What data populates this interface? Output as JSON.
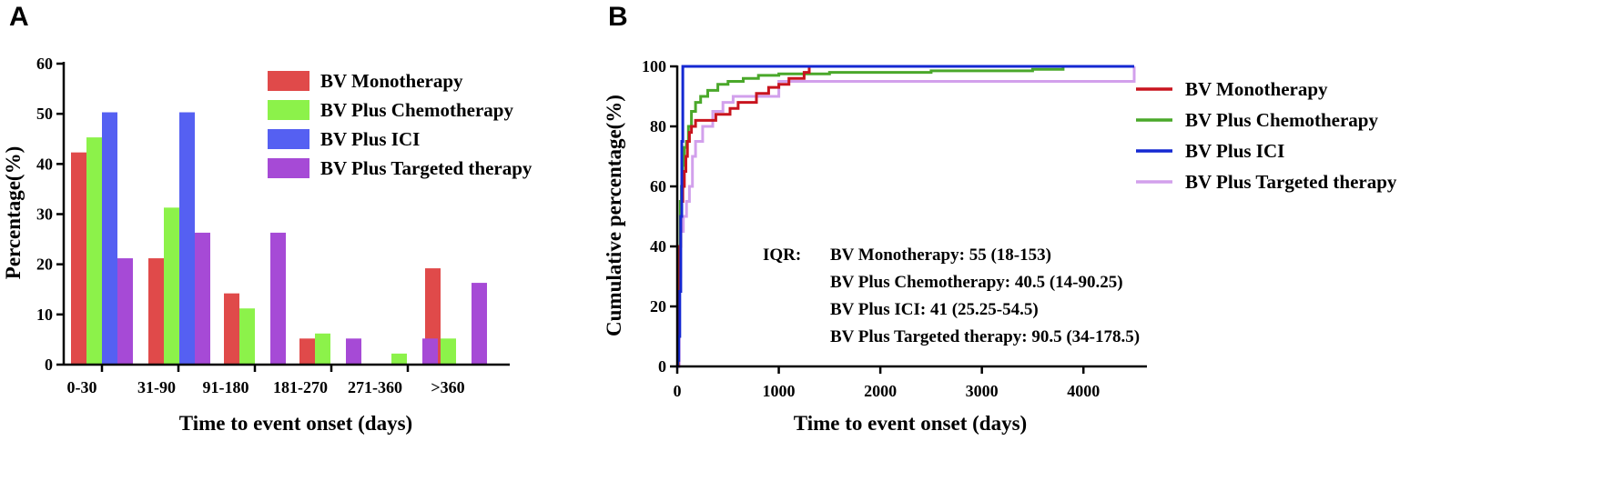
{
  "panels": {
    "a": {
      "letter": "A"
    },
    "b": {
      "letter": "B"
    }
  },
  "colors": {
    "mono": "#e04a4a",
    "chemo": "#8cf24a",
    "ici": "#5560f2",
    "targeted": "#a64ad6",
    "line_mono": "#c8141e",
    "line_chemo": "#4aa82a",
    "line_ici": "#1428d2",
    "line_targeted": "#d2a0ec"
  },
  "chart_data": [
    {
      "type": "bar",
      "title": "",
      "xlabel": "Time to event onset (days)",
      "ylabel": "Percentage(%)",
      "ylim": [
        0,
        60
      ],
      "yticks": [
        "0",
        "10",
        "20",
        "30",
        "40",
        "50",
        "60"
      ],
      "categories": [
        "0-30",
        "31-90",
        "91-180",
        "181-270",
        "271-360",
        ">360"
      ],
      "legend_position": "top-right",
      "series": [
        {
          "key": "mono",
          "name": "BV Monotherapy",
          "values": [
            42.3,
            21.2,
            14.2,
            5.2,
            0,
            19.2
          ]
        },
        {
          "key": "chemo",
          "name": "BV Plus Chemotherapy",
          "values": [
            45.3,
            31.3,
            11.2,
            6.2,
            2.2,
            5.2
          ]
        },
        {
          "key": "ici",
          "name": "BV Plus ICI",
          "values": [
            50.3,
            50.3,
            0,
            0,
            0,
            0
          ]
        },
        {
          "key": "targeted",
          "name": "BV Plus Targeted therapy",
          "values": [
            21.2,
            26.3,
            26.3,
            5.2,
            5.2,
            16.3
          ]
        }
      ]
    },
    {
      "type": "line",
      "title": "",
      "xlabel": "Time to event onset (days)",
      "ylabel": "Cumulative percentage(%)",
      "xlim": [
        0,
        4500
      ],
      "ylim": [
        0,
        100
      ],
      "xticks": [
        "0",
        "1000",
        "2000",
        "3000",
        "4000"
      ],
      "yticks": [
        "0",
        "20",
        "40",
        "60",
        "80",
        "100"
      ],
      "legend_position": "right",
      "series": [
        {
          "key": "line_mono",
          "name": "BV Monotherapy",
          "x": [
            0,
            10,
            15,
            25,
            35,
            45,
            55,
            70,
            85,
            100,
            120,
            140,
            160,
            180,
            250,
            300,
            380,
            450,
            520,
            600,
            700,
            780,
            850,
            900,
            1000,
            1100,
            1200,
            1250,
            1300,
            4500
          ],
          "y": [
            0,
            10,
            25,
            40,
            50,
            55,
            60,
            65,
            70,
            75,
            78,
            80,
            80,
            82,
            82,
            82,
            84,
            84,
            86,
            88,
            88,
            91,
            91,
            93,
            94,
            96,
            96,
            98,
            100,
            100
          ]
        },
        {
          "key": "line_chemo",
          "name": "BV Plus Chemotherapy",
          "x": [
            0,
            10,
            14,
            20,
            30,
            41,
            55,
            70,
            90,
            110,
            140,
            180,
            230,
            300,
            400,
            500,
            650,
            800,
            1000,
            1500,
            2500,
            3500,
            3800,
            4500
          ],
          "y": [
            0,
            10,
            25,
            40,
            55,
            60,
            67,
            73,
            75,
            80,
            85,
            88,
            90,
            92,
            94,
            95,
            96,
            97,
            97.5,
            98,
            98.5,
            99,
            100,
            100
          ]
        },
        {
          "key": "line_ici",
          "name": "BV Plus ICI",
          "x": [
            0,
            5,
            15,
            25,
            35,
            45,
            55,
            4500
          ],
          "y": [
            0,
            2,
            10,
            25,
            50,
            75,
            100,
            100
          ]
        },
        {
          "key": "line_targeted",
          "name": "BV Plus Targeted therapy",
          "x": [
            0,
            20,
            34,
            60,
            91,
            120,
            150,
            180,
            250,
            350,
            450,
            550,
            700,
            1000,
            1300,
            1500,
            2500,
            4400,
            4500
          ],
          "y": [
            0,
            30,
            45,
            50,
            55,
            60,
            70,
            75,
            80,
            85,
            88,
            90,
            90,
            95,
            95,
            95,
            95,
            95,
            100
          ]
        }
      ],
      "annotation": {
        "label": "IQR:",
        "lines": [
          "BV Monotherapy: 55 (18-153)",
          "BV Plus Chemotherapy: 40.5 (14-90.25)",
          "BV Plus ICI: 41 (25.25-54.5)",
          "BV Plus Targeted therapy: 90.5 (34-178.5)"
        ]
      }
    }
  ]
}
